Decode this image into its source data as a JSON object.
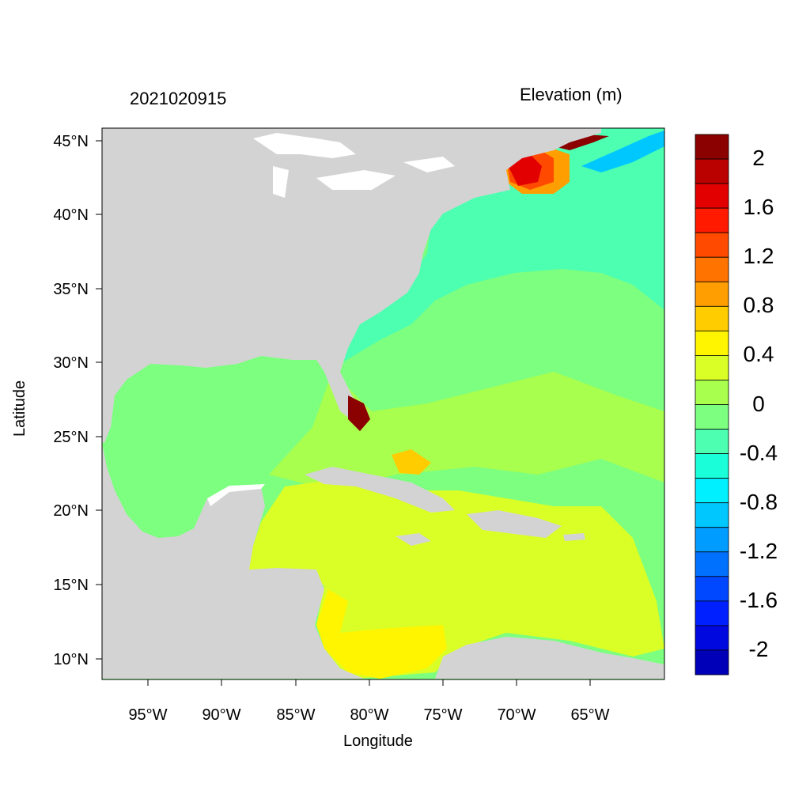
{
  "header": {
    "date_label": "2021020915",
    "variable_label": "Elevation (m)"
  },
  "axes": {
    "xlabel": "Longitude",
    "ylabel": "Latitude",
    "lon_ticks": [
      "95°W",
      "90°W",
      "85°W",
      "80°W",
      "75°W",
      "70°W",
      "65°W"
    ],
    "lat_ticks": [
      "45°N",
      "40°N",
      "35°N",
      "30°N",
      "25°N",
      "20°N",
      "15°N",
      "10°N"
    ]
  },
  "colorbar": {
    "labels": [
      "2",
      "1.6",
      "1.2",
      "0.8",
      "0.4",
      "0",
      "-0.4",
      "-0.8",
      "-1.2",
      "-1.6",
      "-2"
    ],
    "colors": [
      "#8b0000",
      "#bb0000",
      "#e20000",
      "#ff1a00",
      "#ff4a00",
      "#ff7300",
      "#ff9e00",
      "#ffcc00",
      "#fff500",
      "#d9ff26",
      "#a8ff4d",
      "#7dff80",
      "#4dffb0",
      "#1affd9",
      "#00f0ff",
      "#00c8ff",
      "#009cff",
      "#0070ff",
      "#0048ff",
      "#0020ff",
      "#0008e0",
      "#0000b8"
    ]
  },
  "colors": {
    "land": "#d3d3d3",
    "lakes": "#ffffff"
  }
}
